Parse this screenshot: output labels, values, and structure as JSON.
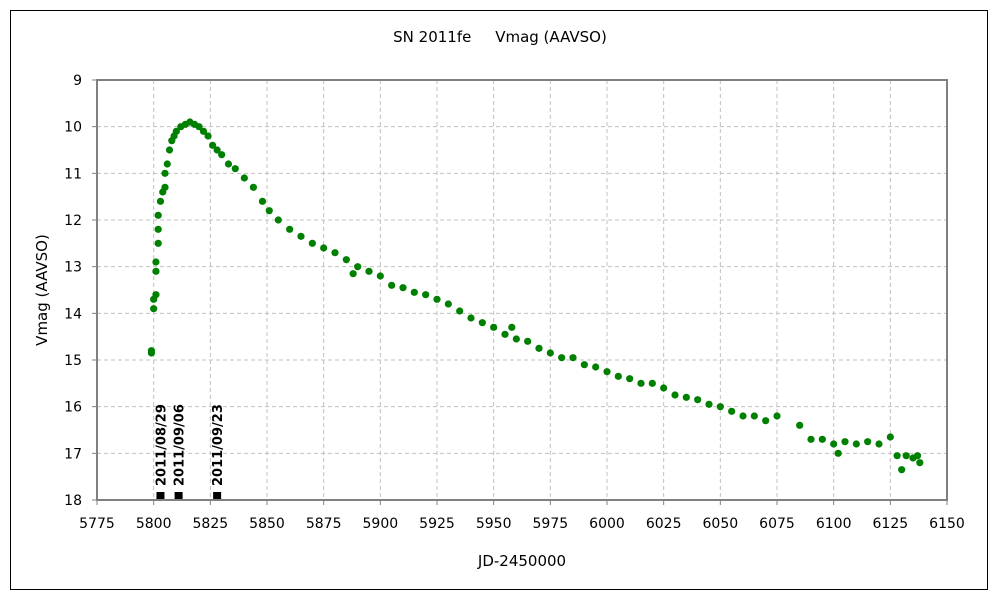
{
  "chart_data": {
    "type": "scatter",
    "title": "SN 2011fe     Vmag (AAVSO)",
    "xlabel": "JD-2450000",
    "ylabel": "Vmag (AAVSO)",
    "xlim": [
      5775,
      6150
    ],
    "ylim": [
      9,
      18
    ],
    "y_inverted": true,
    "grid": true,
    "xticks": [
      5775,
      5800,
      5825,
      5850,
      5875,
      5900,
      5925,
      5950,
      5975,
      6000,
      6025,
      6050,
      6075,
      6100,
      6125,
      6150
    ],
    "yticks": [
      9,
      10,
      11,
      12,
      13,
      14,
      15,
      16,
      17,
      18
    ],
    "marker_color": "#008000",
    "annotations": [
      {
        "x": 5803,
        "label": "2011/08/29"
      },
      {
        "x": 5811,
        "label": "2011/09/06"
      },
      {
        "x": 5828,
        "label": "2011/09/23"
      }
    ],
    "points": [
      [
        5799,
        14.8
      ],
      [
        5799,
        14.85
      ],
      [
        5800,
        13.9
      ],
      [
        5800,
        13.7
      ],
      [
        5801,
        13.6
      ],
      [
        5801,
        13.1
      ],
      [
        5801,
        12.9
      ],
      [
        5802,
        12.5
      ],
      [
        5802,
        12.2
      ],
      [
        5802,
        11.9
      ],
      [
        5803,
        11.6
      ],
      [
        5804,
        11.4
      ],
      [
        5805,
        11.0
      ],
      [
        5805,
        11.3
      ],
      [
        5806,
        10.8
      ],
      [
        5807,
        10.5
      ],
      [
        5808,
        10.3
      ],
      [
        5809,
        10.2
      ],
      [
        5810,
        10.1
      ],
      [
        5812,
        10.0
      ],
      [
        5814,
        9.95
      ],
      [
        5816,
        9.9
      ],
      [
        5818,
        9.95
      ],
      [
        5820,
        10.0
      ],
      [
        5822,
        10.1
      ],
      [
        5824,
        10.2
      ],
      [
        5826,
        10.4
      ],
      [
        5828,
        10.5
      ],
      [
        5830,
        10.6
      ],
      [
        5833,
        10.8
      ],
      [
        5836,
        10.9
      ],
      [
        5840,
        11.1
      ],
      [
        5844,
        11.3
      ],
      [
        5848,
        11.6
      ],
      [
        5851,
        11.8
      ],
      [
        5855,
        12.0
      ],
      [
        5860,
        12.2
      ],
      [
        5865,
        12.35
      ],
      [
        5870,
        12.5
      ],
      [
        5875,
        12.6
      ],
      [
        5880,
        12.7
      ],
      [
        5885,
        12.85
      ],
      [
        5888,
        13.15
      ],
      [
        5890,
        13.0
      ],
      [
        5895,
        13.1
      ],
      [
        5900,
        13.2
      ],
      [
        5905,
        13.4
      ],
      [
        5910,
        13.45
      ],
      [
        5915,
        13.55
      ],
      [
        5920,
        13.6
      ],
      [
        5925,
        13.7
      ],
      [
        5930,
        13.8
      ],
      [
        5935,
        13.95
      ],
      [
        5940,
        14.1
      ],
      [
        5945,
        14.2
      ],
      [
        5950,
        14.3
      ],
      [
        5955,
        14.45
      ],
      [
        5958,
        14.3
      ],
      [
        5960,
        14.55
      ],
      [
        5965,
        14.6
      ],
      [
        5970,
        14.75
      ],
      [
        5975,
        14.85
      ],
      [
        5980,
        14.95
      ],
      [
        5985,
        14.95
      ],
      [
        5990,
        15.1
      ],
      [
        5995,
        15.15
      ],
      [
        6000,
        15.25
      ],
      [
        6005,
        15.35
      ],
      [
        6010,
        15.4
      ],
      [
        6015,
        15.5
      ],
      [
        6020,
        15.5
      ],
      [
        6025,
        15.6
      ],
      [
        6030,
        15.75
      ],
      [
        6035,
        15.8
      ],
      [
        6040,
        15.85
      ],
      [
        6045,
        15.95
      ],
      [
        6050,
        16.0
      ],
      [
        6055,
        16.1
      ],
      [
        6060,
        16.2
      ],
      [
        6065,
        16.2
      ],
      [
        6070,
        16.3
      ],
      [
        6075,
        16.2
      ],
      [
        6085,
        16.4
      ],
      [
        6090,
        16.7
      ],
      [
        6095,
        16.7
      ],
      [
        6100,
        16.8
      ],
      [
        6102,
        17.0
      ],
      [
        6105,
        16.75
      ],
      [
        6110,
        16.8
      ],
      [
        6115,
        16.75
      ],
      [
        6120,
        16.8
      ],
      [
        6125,
        16.65
      ],
      [
        6128,
        17.05
      ],
      [
        6130,
        17.35
      ],
      [
        6132,
        17.05
      ],
      [
        6135,
        17.1
      ],
      [
        6137,
        17.05
      ],
      [
        6138,
        17.2
      ]
    ]
  }
}
